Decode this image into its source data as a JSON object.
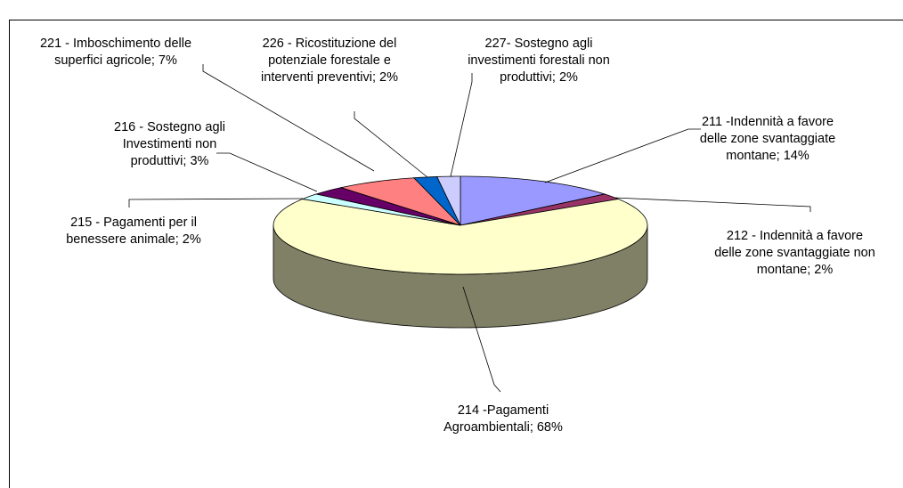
{
  "chart_data": {
    "type": "pie3d",
    "categories": [
      "211 -Indennità a favore delle zone svantaggiate montane; 14%",
      "212 - Indennità a favore delle zone svantaggiate non montane; 2%",
      "214 -Pagamenti Agroambientali; 68%",
      "215 - Pagamenti per il benessere animale; 2%",
      "216 - Sostegno agli Investimenti non produttivi; 3%",
      "221 - Imboschimento delle superfici agricole; 7%",
      "226 - Ricostituzione del potenziale forestale e interventi preventivi; 2%",
      "227- Sostegno agli investimenti forestali non produttivi; 2%"
    ],
    "values": [
      14,
      2,
      68,
      2,
      3,
      7,
      2,
      2
    ],
    "colors": [
      "#9999ff",
      "#993366",
      "#ffffcc",
      "#ccffff",
      "#660066",
      "#ff8080",
      "#0066cc",
      "#ccccff"
    ]
  }
}
